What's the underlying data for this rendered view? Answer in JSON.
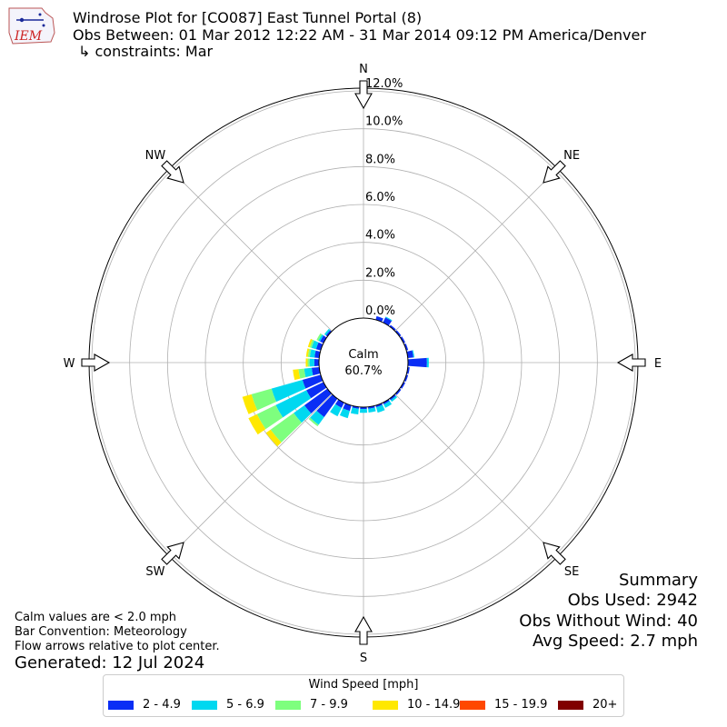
{
  "header": {
    "title_line1": "Windrose Plot for [CO087] East Tunnel Portal (8)",
    "title_line2": "Obs Between: 01 Mar 2012 12:22 AM - 31 Mar 2014 09:12 PM America/Denver",
    "title_line3": "↳ constraints: Mar",
    "logo_text": "IEM"
  },
  "summary": {
    "heading": "Summary",
    "obs_used": "Obs Used: 2942",
    "obs_without_wind": "Obs Without Wind: 40",
    "avg_speed": "Avg Speed: 2.7 mph"
  },
  "notes": {
    "calm": "Calm values are < 2.0 mph",
    "bar_convention": "Bar Convention: Meteorology",
    "flow_arrows": "Flow arrows relative to plot center.",
    "generated": "Generated: 12 Jul 2024"
  },
  "chart_data": {
    "type": "windrose",
    "calm_label": "Calm",
    "calm_percent": "60.7%",
    "radial_ticks": [
      "0.0%",
      "2.0%",
      "4.0%",
      "6.0%",
      "8.0%",
      "10.0%",
      "12.0%"
    ],
    "radial_max": 12,
    "directions": [
      "N",
      "NE",
      "E",
      "SE",
      "S",
      "SW",
      "W",
      "NW"
    ],
    "legend_title": "Wind Speed [mph]",
    "speed_bins": [
      {
        "label": "2 - 4.9",
        "color": "#0a2ef5"
      },
      {
        "label": "5 - 6.9",
        "color": "#00d8f0"
      },
      {
        "label": "7 - 9.9",
        "color": "#7eff7e"
      },
      {
        "label": "10 - 14.9",
        "color": "#ffe800"
      },
      {
        "label": "15 - 19.9",
        "color": "#ff4800"
      },
      {
        "label": "20+",
        "color": "#800000"
      }
    ],
    "sector_deg": 10,
    "sectors": [
      {
        "dir": 0,
        "cum": [
          0,
          0,
          0,
          0,
          0,
          0
        ]
      },
      {
        "dir": 10,
        "cum": [
          0,
          0,
          0,
          0,
          0,
          0
        ]
      },
      {
        "dir": 20,
        "cum": [
          0.2,
          0.2,
          0.2,
          0.2,
          0.2,
          0.2
        ]
      },
      {
        "dir": 30,
        "cum": [
          0.3,
          0.35,
          0.35,
          0.35,
          0.35,
          0.35
        ]
      },
      {
        "dir": 40,
        "cum": [
          0.1,
          0.1,
          0.1,
          0.1,
          0.1,
          0.1
        ]
      },
      {
        "dir": 50,
        "cum": [
          0.1,
          0.1,
          0.1,
          0.1,
          0.1,
          0.1
        ]
      },
      {
        "dir": 60,
        "cum": [
          0.1,
          0.1,
          0.1,
          0.1,
          0.1,
          0.1
        ]
      },
      {
        "dir": 70,
        "cum": [
          0.1,
          0.1,
          0.1,
          0.1,
          0.1,
          0.1
        ]
      },
      {
        "dir": 80,
        "cum": [
          0.3,
          0.35,
          0.35,
          0.35,
          0.35,
          0.35
        ]
      },
      {
        "dir": 90,
        "cum": [
          1.0,
          1.1,
          1.1,
          1.1,
          1.1,
          1.1
        ]
      },
      {
        "dir": 100,
        "cum": [
          0.1,
          0.1,
          0.1,
          0.1,
          0.1,
          0.1
        ]
      },
      {
        "dir": 110,
        "cum": [
          0.1,
          0.1,
          0.1,
          0.1,
          0.1,
          0.1
        ]
      },
      {
        "dir": 120,
        "cum": [
          0.1,
          0.1,
          0.1,
          0.1,
          0.1,
          0.1
        ]
      },
      {
        "dir": 130,
        "cum": [
          0.1,
          0.1,
          0.1,
          0.1,
          0.1,
          0.1
        ]
      },
      {
        "dir": 140,
        "cum": [
          0.1,
          0.2,
          0.2,
          0.2,
          0.2,
          0.2
        ]
      },
      {
        "dir": 150,
        "cum": [
          0.1,
          0.3,
          0.3,
          0.3,
          0.3,
          0.3
        ]
      },
      {
        "dir": 160,
        "cum": [
          0.1,
          0.4,
          0.4,
          0.4,
          0.4,
          0.4
        ]
      },
      {
        "dir": 170,
        "cum": [
          0.1,
          0.3,
          0.3,
          0.3,
          0.3,
          0.3
        ]
      },
      {
        "dir": 180,
        "cum": [
          0.1,
          0.3,
          0.3,
          0.3,
          0.3,
          0.3
        ]
      },
      {
        "dir": 190,
        "cum": [
          0.1,
          0.4,
          0.4,
          0.4,
          0.4,
          0.4
        ]
      },
      {
        "dir": 200,
        "cum": [
          0.3,
          0.7,
          0.7,
          0.7,
          0.7,
          0.7
        ]
      },
      {
        "dir": 210,
        "cum": [
          0.3,
          0.8,
          0.8,
          0.8,
          0.8,
          0.8
        ]
      },
      {
        "dir": 220,
        "cum": [
          1.2,
          1.7,
          1.8,
          1.8,
          1.8,
          1.8
        ]
      },
      {
        "dir": 230,
        "cum": [
          1.5,
          2.2,
          3.7,
          4.0,
          4.0,
          4.0
        ]
      },
      {
        "dir": 240,
        "cum": [
          1.0,
          2.8,
          3.9,
          4.4,
          4.4,
          4.4
        ]
      },
      {
        "dir": 250,
        "cum": [
          1.0,
          2.7,
          3.8,
          4.3,
          4.3,
          4.3
        ]
      },
      {
        "dir": 260,
        "cum": [
          0.4,
          0.8,
          1.1,
          1.4,
          1.4,
          1.4
        ]
      },
      {
        "dir": 270,
        "cum": [
          0.25,
          0.5,
          0.6,
          0.7,
          0.7,
          0.7
        ]
      },
      {
        "dir": 280,
        "cum": [
          0.25,
          0.5,
          0.6,
          0.7,
          0.7,
          0.7
        ]
      },
      {
        "dir": 290,
        "cum": [
          0.25,
          0.5,
          0.6,
          0.7,
          0.7,
          0.7
        ]
      },
      {
        "dir": 300,
        "cum": [
          0.2,
          0.3,
          0.4,
          0.4,
          0.4,
          0.4
        ]
      },
      {
        "dir": 310,
        "cum": [
          0.1,
          0.2,
          0.2,
          0.2,
          0.2,
          0.2
        ]
      },
      {
        "dir": 320,
        "cum": [
          0,
          0,
          0,
          0,
          0,
          0
        ]
      },
      {
        "dir": 330,
        "cum": [
          0,
          0,
          0,
          0,
          0,
          0
        ]
      },
      {
        "dir": 340,
        "cum": [
          0,
          0,
          0,
          0,
          0,
          0
        ]
      },
      {
        "dir": 350,
        "cum": [
          0,
          0,
          0,
          0,
          0,
          0
        ]
      }
    ]
  }
}
